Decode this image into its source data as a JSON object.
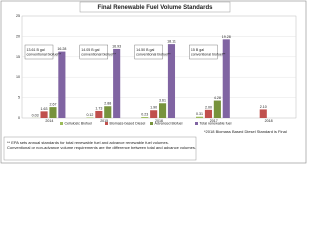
{
  "chart_data": {
    "type": "bar",
    "title": "Final Renewable Fuel Volume Standards",
    "categories": [
      "2014",
      "2015",
      "2016",
      "2017",
      "2018"
    ],
    "series": [
      {
        "name": "Cellulosic Biofuel",
        "color": "#9bbb59",
        "values": [
          0.03,
          0.12,
          0.23,
          0.31,
          null
        ],
        "value_labels": [
          "0.03",
          "0.12",
          "0.23",
          "0.31",
          null
        ]
      },
      {
        "name": "Biomass-based Diesel",
        "color": "#c0504d",
        "values": [
          1.63,
          1.73,
          1.9,
          2.0,
          2.1
        ],
        "value_labels": [
          "1.63",
          "1.73",
          "1.90",
          "2.00",
          "2.10"
        ]
      },
      {
        "name": "Advanced Biofuel",
        "color": "#77933c",
        "values": [
          2.67,
          2.88,
          3.61,
          4.28,
          null
        ],
        "value_labels": [
          "2.67",
          "2.88",
          "3.61",
          "4.28",
          null
        ]
      },
      {
        "name": "Total renewable fuel",
        "color": "#8064a2",
        "values": [
          16.28,
          16.93,
          18.11,
          19.28,
          null
        ],
        "value_labels": [
          "16.28",
          "16.93",
          "18.11",
          "19.28",
          null
        ]
      }
    ],
    "ylim": [
      0,
      25
    ],
    "yticks": [
      0,
      5,
      10,
      15,
      20,
      25
    ],
    "grid": true,
    "annotations": [
      "13.61 B gal conventional biofuel**",
      "14.05 B gal conventional biofuel**",
      "14.50 B gal conventional biofuel**",
      "15 B gal conventional biofuel**"
    ],
    "footnotes": [
      "** EPA sets annual standards for total renewable fuel and advance renewable fuel volumes. Conventional or non-advance volume requirements are the difference between total and advance volumes.",
      "*2018 Biomass Based Diesel Standard is Final"
    ]
  }
}
